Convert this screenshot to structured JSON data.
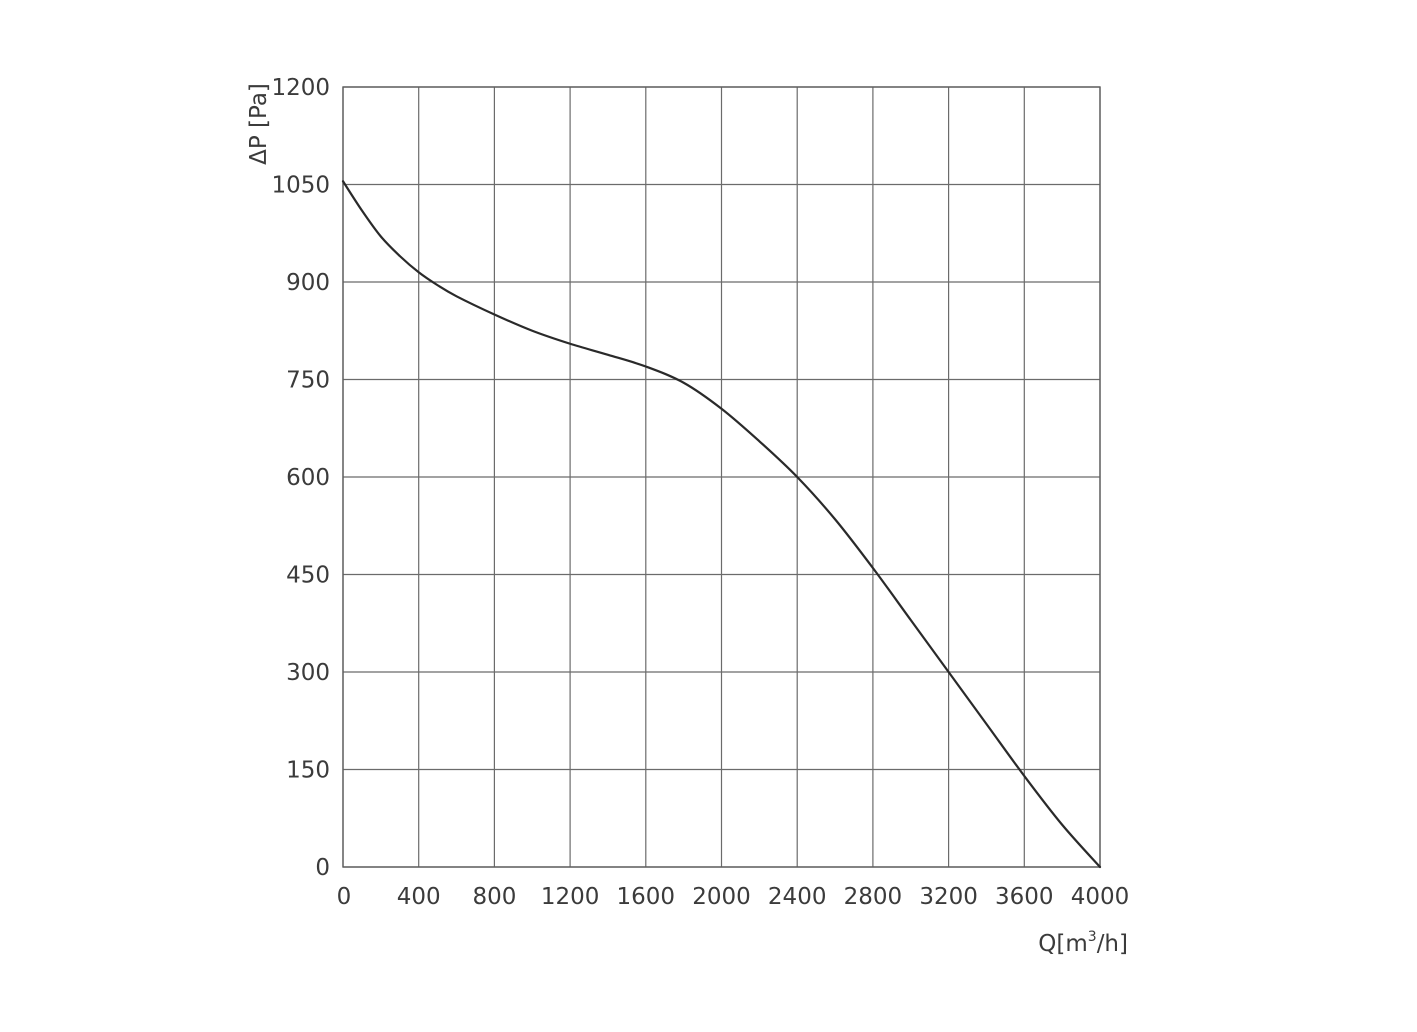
{
  "chart_data": {
    "type": "line",
    "title": "",
    "xlabel": {
      "prefix": "Q[m",
      "superscript": "3",
      "suffix": "/h]"
    },
    "ylabel": "ΔP [Pa]",
    "xlim": [
      0,
      4000
    ],
    "ylim": [
      0,
      1200
    ],
    "grid": true,
    "x_ticks": [
      "0",
      "400",
      "800",
      "1200",
      "1600",
      "2000",
      "2400",
      "2800",
      "3200",
      "3600",
      "4000"
    ],
    "y_ticks": [
      "0",
      "150",
      "300",
      "450",
      "600",
      "750",
      "900",
      "1050",
      "1200"
    ],
    "series": [
      {
        "x": [
          0,
          100,
          200,
          300,
          400,
          500,
          600,
          800,
          1000,
          1200,
          1400,
          1600,
          1800,
          2000,
          2200,
          2400,
          2600,
          2800,
          3000,
          3200,
          3400,
          3600,
          3800,
          4000
        ],
        "y": [
          1055,
          1010,
          970,
          940,
          915,
          895,
          878,
          850,
          825,
          805,
          788,
          770,
          745,
          705,
          655,
          600,
          535,
          460,
          380,
          300,
          220,
          140,
          65,
          0
        ]
      }
    ]
  }
}
